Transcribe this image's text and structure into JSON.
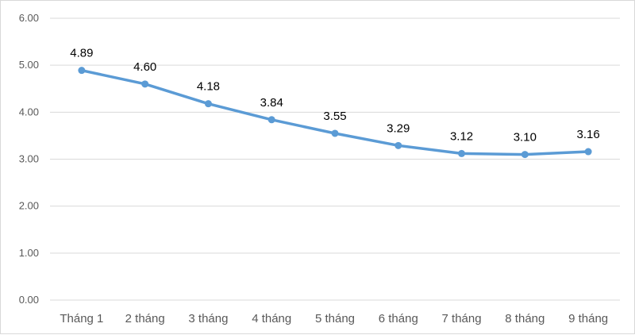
{
  "chart_data": {
    "type": "line",
    "categories": [
      "Tháng 1",
      "2 tháng",
      "3 tháng",
      "4 tháng",
      "5 tháng",
      "6 tháng",
      "7 tháng",
      "8 tháng",
      "9 tháng"
    ],
    "series": [
      {
        "values": [
          4.89,
          4.6,
          4.18,
          3.84,
          3.55,
          3.29,
          3.12,
          3.1,
          3.16
        ],
        "data_labels": [
          "4.89",
          "4.60",
          "4.18",
          "3.84",
          "3.55",
          "3.29",
          "3.12",
          "3.10",
          "3.16"
        ],
        "color": "#5b9bd5"
      }
    ],
    "ylim": [
      0,
      6
    ],
    "yticks": [
      "0.00",
      "1.00",
      "2.00",
      "3.00",
      "4.00",
      "5.00",
      "6.00"
    ],
    "grid": true,
    "legend": "none"
  }
}
